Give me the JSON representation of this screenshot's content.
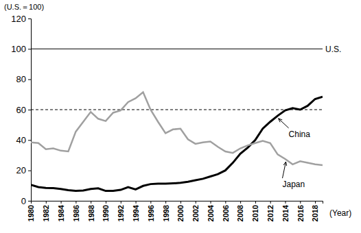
{
  "chart_data": {
    "type": "line",
    "y_label": "(U.S.＝100)",
    "x_label": "(Year)",
    "x": [
      1980,
      1981,
      1982,
      1983,
      1984,
      1985,
      1986,
      1987,
      1988,
      1989,
      1990,
      1991,
      1992,
      1993,
      1994,
      1995,
      1996,
      1997,
      1998,
      1999,
      2000,
      2001,
      2002,
      2003,
      2004,
      2005,
      2006,
      2007,
      2008,
      2009,
      2010,
      2011,
      2012,
      2013,
      2014,
      2015,
      2016,
      2017,
      2018,
      2019
    ],
    "series": [
      {
        "name": "China",
        "color": "#000000",
        "line_style": "solid",
        "values": [
          10.5,
          9,
          8.5,
          8.3,
          7.8,
          7,
          6.5,
          6.8,
          7.8,
          8.2,
          6.5,
          6.5,
          7.2,
          9,
          7.5,
          9.8,
          11,
          11.3,
          11.3,
          11.5,
          11.8,
          12.5,
          13.5,
          14.5,
          16,
          17.5,
          20,
          25,
          31,
          35,
          40,
          47.5,
          52,
          56,
          59.5,
          61,
          60,
          62.5,
          67,
          68.5
        ]
      },
      {
        "name": "Japan",
        "color": "#a0a0a0",
        "line_style": "solid",
        "values": [
          38.5,
          38,
          34,
          34.5,
          33,
          32.5,
          45.5,
          52,
          58.5,
          54,
          52.5,
          58,
          59.5,
          65,
          67.5,
          71.5,
          60,
          52,
          44.5,
          47,
          47.5,
          40.5,
          37.5,
          38.5,
          39,
          35.5,
          32.5,
          31.5,
          34.5,
          36.5,
          38,
          39.5,
          38,
          30.5,
          27.5,
          24,
          26,
          25,
          24,
          23.5
        ]
      }
    ],
    "reference_lines": [
      {
        "value": 100,
        "label": "U.S.",
        "line_style": "solid",
        "color": "#000000"
      },
      {
        "value": 60,
        "line_style": "dashed",
        "color": "#000000"
      }
    ],
    "xlim": [
      1980,
      2019
    ],
    "xticks": [
      1980,
      1982,
      1984,
      1986,
      1988,
      1990,
      1992,
      1994,
      1996,
      1998,
      2000,
      2002,
      2004,
      2006,
      2008,
      2010,
      2012,
      2014,
      2016,
      2018
    ],
    "ylim": [
      0,
      120
    ],
    "yticks": [
      0,
      20,
      40,
      60,
      80,
      100,
      120
    ],
    "grid": false
  }
}
